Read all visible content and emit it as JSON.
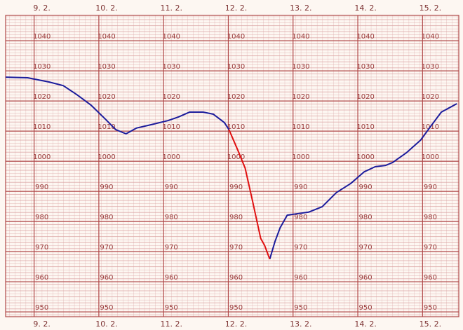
{
  "chart_data": {
    "type": "line",
    "x": [
      8.44,
      8.78,
      9.11,
      9.33,
      9.54,
      9.76,
      9.98,
      10.14,
      10.3,
      10.46,
      10.68,
      10.95,
      11.11,
      11.28,
      11.49,
      11.65,
      11.82,
      11.89,
      12.03,
      12.14,
      12.25,
      12.38,
      12.44,
      12.52,
      12.6,
      12.68,
      12.79,
      12.95,
      13.12,
      13.33,
      13.55,
      13.77,
      13.98,
      14.15,
      14.31,
      14.42,
      14.63,
      14.85,
      15.01,
      15.17,
      15.41
    ],
    "series": [
      {
        "color": "#1c1c9c",
        "values": [
          1027.9,
          1027.7,
          1026.3,
          1025.1,
          1022.1,
          1018.6,
          1014.0,
          1010.5,
          1009.1,
          1011.0,
          1012.1,
          1013.5,
          1014.7,
          1016.3,
          1016.3,
          1015.6,
          1012.8,
          1010.5,
          null,
          null,
          null,
          null,
          null,
          967.5,
          973.3,
          977.9,
          982.1,
          982.6,
          983.1,
          984.9,
          989.6,
          992.6,
          996.5,
          998.2,
          998.6,
          999.6,
          1002.8,
          1007.0,
          1011.7,
          1016.3,
          1019.1
        ]
      },
      {
        "color": "#e01010",
        "values": [
          null,
          null,
          null,
          null,
          null,
          null,
          null,
          null,
          null,
          null,
          null,
          null,
          null,
          null,
          null,
          null,
          null,
          1010.5,
          1003.5,
          997.7,
          987.2,
          974.4,
          972.1,
          967.5,
          null,
          null,
          null,
          null,
          null,
          null,
          null,
          null,
          null,
          null,
          null,
          null,
          null,
          null,
          null,
          null,
          null
        ]
      }
    ],
    "xlim": [
      8.44,
      15.44
    ],
    "xticks": [
      {
        "value": 9,
        "label": "9. 2."
      },
      {
        "value": 10,
        "label": "10. 2."
      },
      {
        "value": 11,
        "label": "11. 2."
      },
      {
        "value": 12,
        "label": "12. 2."
      },
      {
        "value": 13,
        "label": "13. 2."
      },
      {
        "value": 14,
        "label": "14. 2."
      },
      {
        "value": 15,
        "label": "15. 2."
      }
    ],
    "ylim": [
      948.4,
      1048.4
    ],
    "yticks": [
      950,
      960,
      970,
      980,
      990,
      1000,
      1010,
      1020,
      1030,
      1040
    ],
    "grid": true
  }
}
